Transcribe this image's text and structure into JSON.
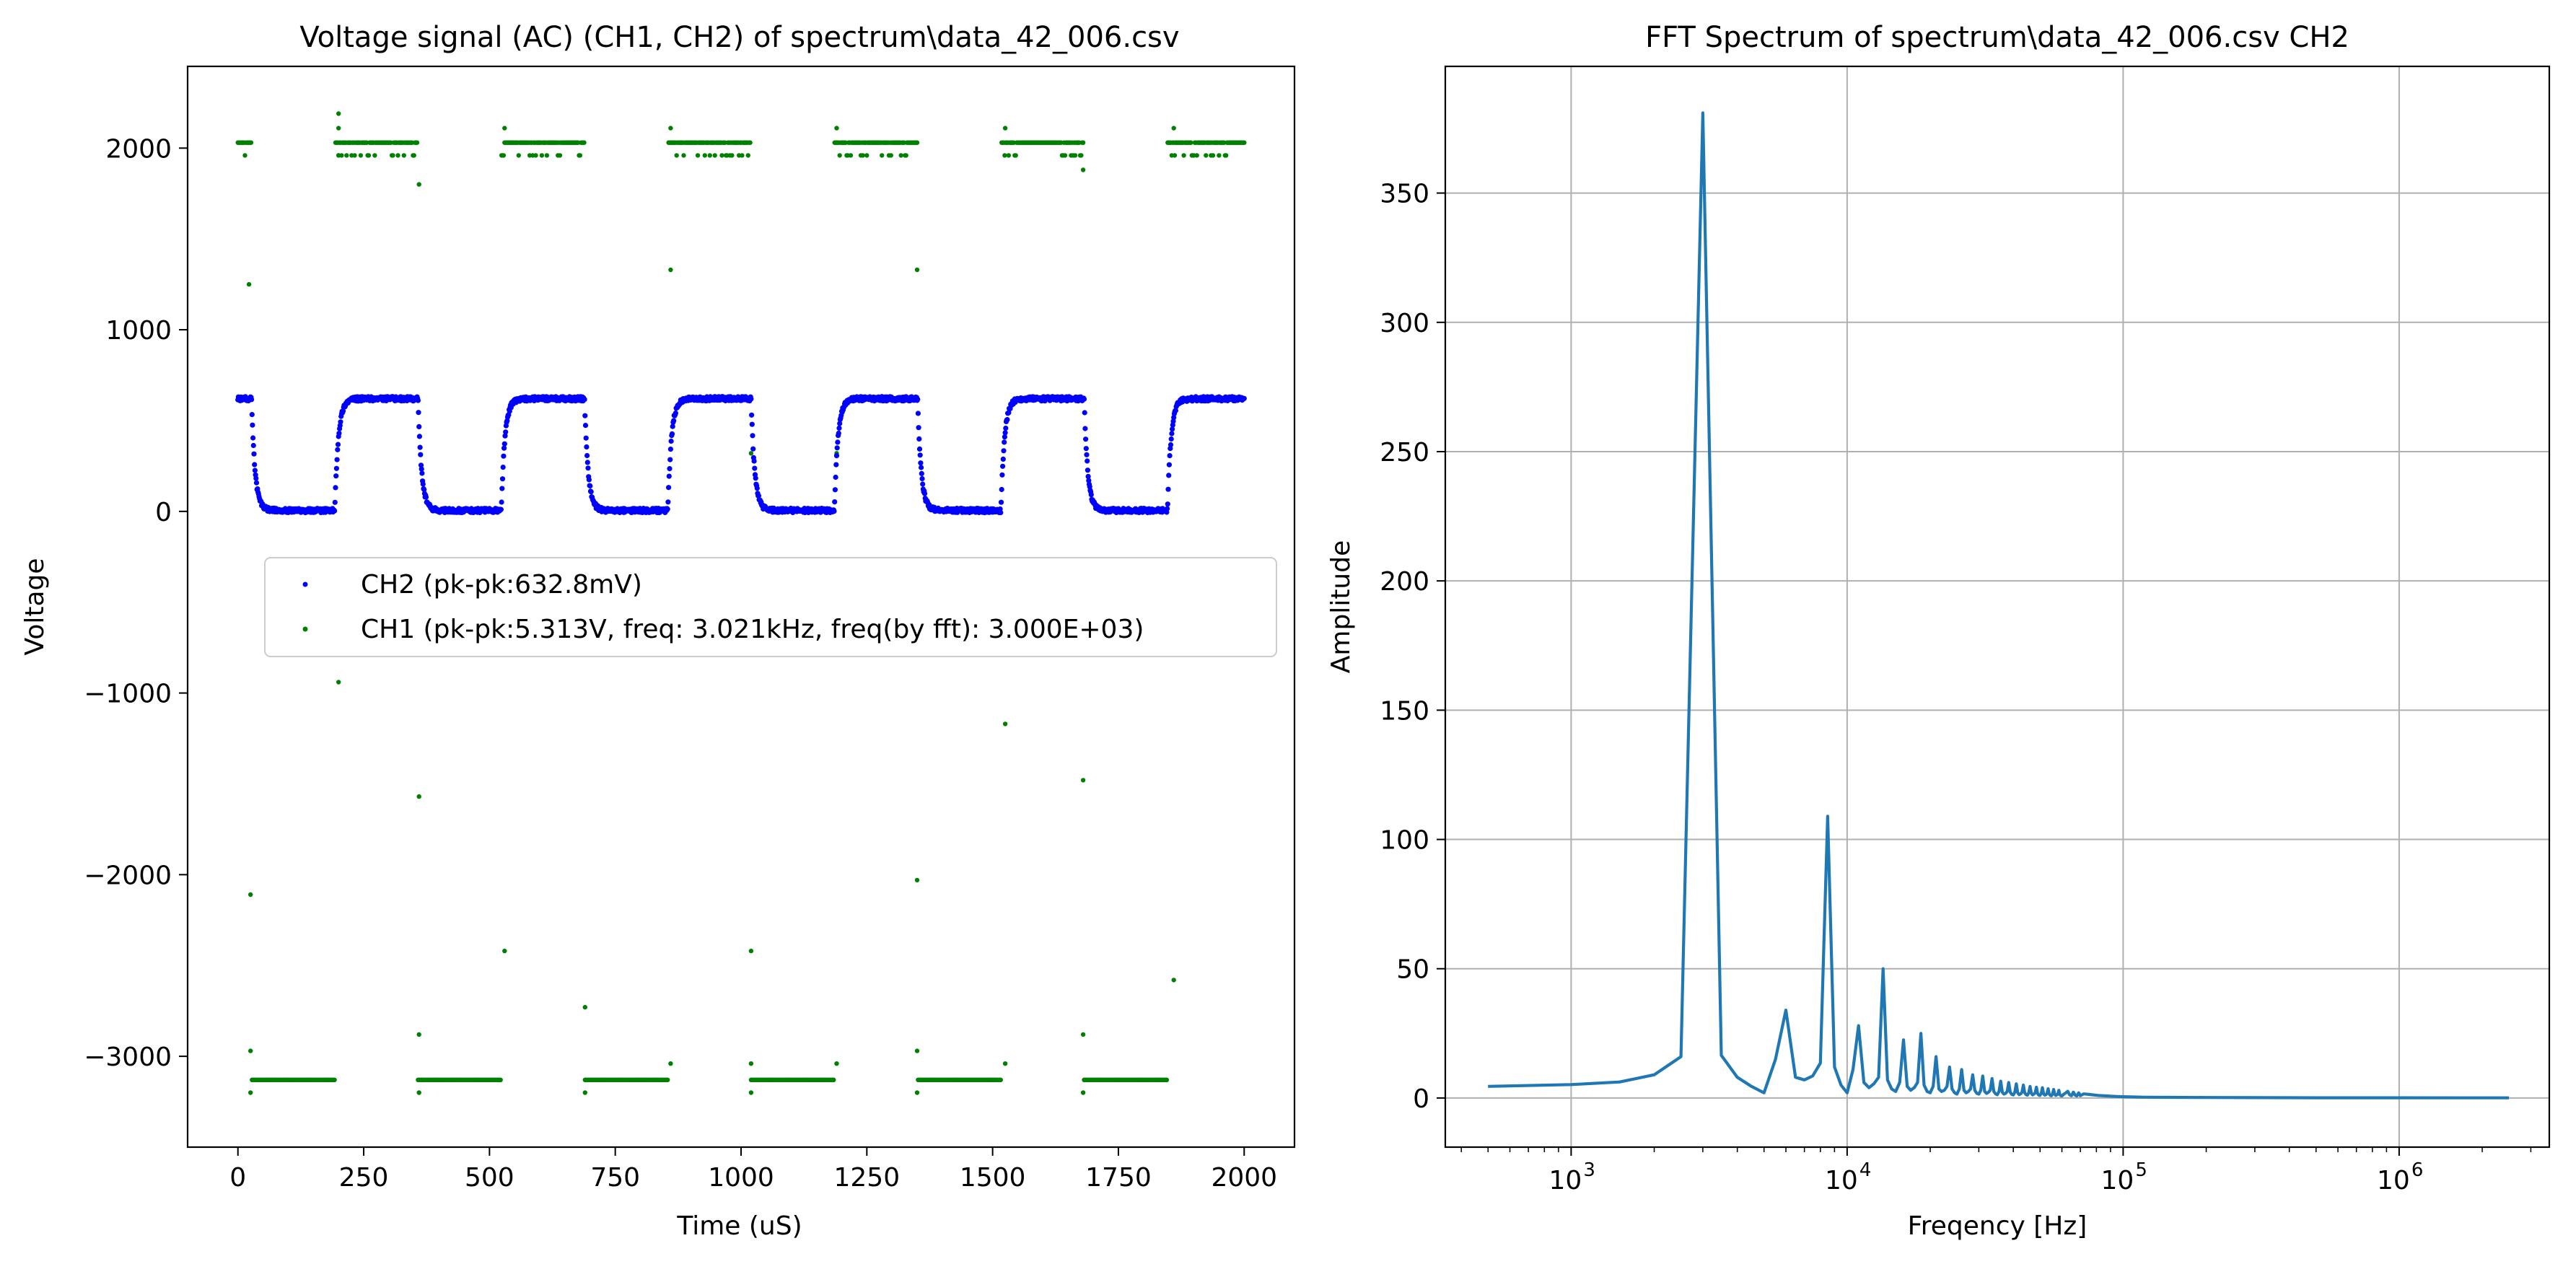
{
  "chart_data": [
    {
      "type": "scatter",
      "title": "Voltage signal (AC) (CH1, CH2) of spectrum\\data_42_006.csv",
      "xlabel": "Time (uS)",
      "ylabel": "Voltage",
      "xlim": [
        -100,
        2100
      ],
      "ylim": [
        -3500,
        2450
      ],
      "xticks": [
        0,
        250,
        500,
        750,
        1000,
        1250,
        1500,
        1750,
        2000
      ],
      "xtick_labels": [
        "0",
        "250",
        "500",
        "750",
        "1000",
        "1250",
        "1500",
        "1750",
        "2000"
      ],
      "yticks": [
        -3000,
        -2000,
        -1000,
        0,
        1000,
        2000
      ],
      "ytick_labels": [
        "−3000",
        "−2000",
        "−1000",
        "0",
        "1000",
        "2000"
      ],
      "grid": false,
      "legend": "center",
      "series": [
        {
          "name": "CH2 (pk-pk:632.8mV)",
          "color": "#0000ff",
          "waveform": {
            "kind": "square-rc",
            "period_us": 331,
            "first_fall_us": 27,
            "high_us": 165.5,
            "high_value": 620,
            "low_value": 5,
            "noise": 12,
            "x_start": 0,
            "x_end": 2000,
            "step_us": 1
          }
        },
        {
          "name": "CH1 (pk-pk:5.313V, freq: 3.021kHz, freq(by fft): 3.000E+03)",
          "color": "#008000",
          "waveform": {
            "kind": "square",
            "period_us": 331,
            "first_fall_us": 27,
            "high_us": 165.5,
            "high_levels": [
              2030,
              1960
            ],
            "low_value": -3130,
            "x_start": 0,
            "x_end": 2000,
            "step_us": 2
          },
          "transition_points": [
            [
              22,
              1250
            ],
            [
              25,
              -2110
            ],
            [
              25,
              -2970
            ],
            [
              25,
              -3200
            ],
            [
              200,
              2190
            ],
            [
              200,
              2110
            ],
            [
              200,
              1960
            ],
            [
              200,
              -940
            ],
            [
              360,
              1800
            ],
            [
              360,
              -1570
            ],
            [
              360,
              -2880
            ],
            [
              360,
              -3200
            ],
            [
              530,
              2110
            ],
            [
              530,
              -2420
            ],
            [
              690,
              -2730
            ],
            [
              690,
              -3200
            ],
            [
              860,
              2110
            ],
            [
              860,
              1330
            ],
            [
              860,
              -3040
            ],
            [
              1020,
              320
            ],
            [
              1020,
              -2420
            ],
            [
              1020,
              -3040
            ],
            [
              1020,
              -3200
            ],
            [
              1190,
              2110
            ],
            [
              1190,
              320
            ],
            [
              1190,
              -3040
            ],
            [
              1350,
              1330
            ],
            [
              1350,
              -2030
            ],
            [
              1350,
              -2970
            ],
            [
              1350,
              -3200
            ],
            [
              1525,
              2110
            ],
            [
              1525,
              -1170
            ],
            [
              1525,
              -3040
            ],
            [
              1680,
              1880
            ],
            [
              1680,
              -1480
            ],
            [
              1680,
              -2880
            ],
            [
              1680,
              -3200
            ],
            [
              1860,
              2110
            ],
            [
              1860,
              -2580
            ]
          ]
        }
      ]
    },
    {
      "type": "line",
      "title": "FFT Spectrum of spectrum\\data_42_006.csv CH2",
      "xlabel": "Freqency [Hz]",
      "ylabel": "Amplitude",
      "xscale": "log",
      "xlim": [
        350,
        3500000
      ],
      "ylim": [
        -19,
        399
      ],
      "xticks": [
        1000,
        10000,
        100000,
        1000000
      ],
      "xtick_labels": [
        "10",
        "10",
        "10",
        "10"
      ],
      "xtick_exponents": [
        "3",
        "4",
        "5",
        "6"
      ],
      "yticks": [
        0,
        50,
        100,
        150,
        200,
        250,
        300,
        350
      ],
      "ytick_labels": [
        "0",
        "50",
        "100",
        "150",
        "200",
        "250",
        "300",
        "350"
      ],
      "grid": true,
      "color": "#1f77b4",
      "fundamental_hz": 3000,
      "x": [
        500,
        1000,
        1500,
        2000,
        2500,
        3000,
        3500,
        4000,
        4500,
        5000,
        5500,
        6000,
        6500,
        7000,
        7500,
        8000,
        8500,
        9000,
        9500,
        10000,
        10500,
        11000,
        11500,
        12000,
        12500,
        13000,
        13500,
        14000,
        14500,
        15000,
        15500,
        16000,
        16500,
        17000,
        17500,
        18000,
        18500,
        19000,
        19500,
        20000,
        20500,
        21000,
        21500,
        22000,
        22500,
        23000,
        23500,
        24000,
        24500,
        25000,
        25500,
        26000,
        26500,
        27000,
        27500,
        28000,
        28500,
        29000,
        29500,
        30000,
        30500,
        31000,
        31500,
        32000,
        32500,
        33000,
        33500,
        34000,
        34500,
        35000,
        35500,
        36000,
        36500,
        37000,
        37500,
        38000,
        38500,
        39000,
        39500,
        40000,
        40500,
        41000,
        41500,
        42000,
        42500,
        43000,
        43500,
        44000,
        44500,
        45000,
        45500,
        46000,
        46500,
        47000,
        47500,
        48000,
        48500,
        49000,
        49500,
        50000,
        50500,
        51000,
        51500,
        52000,
        52500,
        53000,
        53500,
        54000,
        54500,
        55000,
        55500,
        56000,
        56500,
        57000,
        57500,
        58000,
        58500,
        59000,
        59500,
        60000,
        61000,
        62000,
        63000,
        64000,
        65000,
        66000,
        67000,
        68000,
        69000,
        70000,
        72000,
        75000,
        78000,
        81000,
        84000,
        87000,
        90000,
        95000,
        100000,
        110000,
        120000,
        150000,
        200000,
        300000,
        500000,
        1000000,
        2500000
      ],
      "y": [
        4.5,
        5.2,
        6.2,
        9.0,
        16.0,
        381.0,
        16.5,
        8.0,
        4.5,
        2.0,
        15.0,
        34.0,
        8.0,
        7.0,
        8.5,
        13.5,
        109.0,
        12.0,
        5.0,
        2.0,
        11.0,
        28.0,
        6.0,
        4.0,
        5.5,
        8.0,
        50.0,
        7.0,
        3.5,
        2.5,
        6.0,
        22.5,
        4.5,
        3.0,
        4.0,
        6.0,
        25.0,
        5.0,
        2.5,
        2.0,
        4.5,
        16.0,
        3.5,
        2.5,
        3.0,
        4.5,
        12.0,
        3.5,
        2.0,
        1.5,
        3.5,
        11.0,
        3.0,
        2.0,
        2.5,
        3.5,
        9.0,
        3.0,
        1.8,
        1.5,
        3.0,
        8.5,
        2.5,
        1.8,
        2.2,
        3.0,
        7.5,
        2.5,
        1.6,
        1.3,
        2.5,
        6.5,
        2.2,
        1.5,
        1.8,
        2.5,
        6.0,
        2.2,
        1.4,
        1.2,
        2.2,
        5.5,
        2.0,
        1.3,
        1.6,
        2.2,
        5.0,
        2.0,
        1.3,
        1.1,
        2.0,
        4.5,
        1.8,
        1.2,
        1.5,
        2.0,
        4.2,
        1.7,
        1.1,
        1.0,
        1.8,
        4.0,
        1.6,
        1.1,
        1.3,
        1.8,
        3.6,
        1.5,
        1.0,
        0.9,
        1.6,
        3.3,
        1.4,
        1.0,
        1.2,
        1.6,
        3.0,
        1.3,
        0.9,
        0.8,
        1.5,
        2.0,
        2.6,
        1.2,
        0.9,
        2.3,
        1.1,
        0.8,
        2.0,
        0.9,
        1.6,
        1.4,
        1.2,
        1.0,
        0.9,
        0.8,
        0.7,
        0.6,
        0.5,
        0.4,
        0.3,
        0.25,
        0.2,
        0.15,
        0.1,
        0.08,
        0.05
      ]
    }
  ]
}
